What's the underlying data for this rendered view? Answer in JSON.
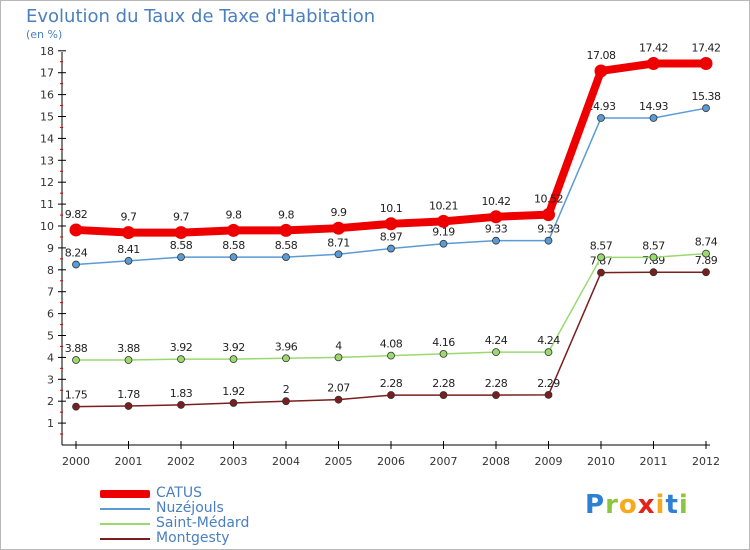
{
  "header": {
    "title": "Evolution du Taux de Taxe d'Habitation",
    "subtitle": "(en %)"
  },
  "logo": {
    "text": "Proxiti",
    "letters": [
      "P",
      "r",
      "o",
      "x",
      "i",
      "t",
      "i"
    ],
    "colors": [
      "#2e7fd6",
      "#8cc63f",
      "#f7a91b",
      "#e2231a",
      "#f7a91b",
      "#2e7fd6",
      "#8cc63f"
    ]
  },
  "chart_data": {
    "type": "line",
    "x": [
      "2000",
      "2001",
      "2002",
      "2003",
      "2004",
      "2005",
      "2006",
      "2007",
      "2008",
      "2009",
      "2010",
      "2011",
      "2012"
    ],
    "ylim": [
      0,
      18
    ],
    "yticks": [
      "1",
      "2",
      "3",
      "4",
      "5",
      "6",
      "7",
      "8",
      "9",
      "10",
      "11",
      "12",
      "13",
      "14",
      "15",
      "16",
      "17",
      "18"
    ],
    "grid": false,
    "legend_position": "bottom-left",
    "series": [
      {
        "name": "CATUS",
        "color": "#ee0000",
        "values": [
          9.82,
          9.7,
          9.7,
          9.8,
          9.8,
          9.9,
          10.1,
          10.21,
          10.42,
          10.52,
          17.08,
          17.42,
          17.42
        ],
        "labels": [
          "9.82",
          "9.7",
          "9.7",
          "9.8",
          "9.8",
          "9.9",
          "10.1",
          "10.21",
          "10.42",
          "10.52",
          "17.08",
          "17.42",
          "17.42"
        ]
      },
      {
        "name": "Nuzéjouls",
        "color": "#5b9bd5",
        "values": [
          8.24,
          8.41,
          8.58,
          8.58,
          8.58,
          8.71,
          8.97,
          9.19,
          9.33,
          9.33,
          14.93,
          14.93,
          15.38
        ],
        "labels": [
          "8.24",
          "8.41",
          "8.58",
          "8.58",
          "8.58",
          "8.71",
          "8.97",
          "9.19",
          "9.33",
          "9.33",
          "14.93",
          "14.93",
          "15.38"
        ]
      },
      {
        "name": "Saint-Médard",
        "color": "#9bd970",
        "values": [
          3.88,
          3.88,
          3.92,
          3.92,
          3.96,
          4,
          4.08,
          4.16,
          4.24,
          4.24,
          8.57,
          8.57,
          8.74
        ],
        "labels": [
          "3.88",
          "3.88",
          "3.92",
          "3.92",
          "3.96",
          "4",
          "4.08",
          "4.16",
          "4.24",
          "4.24",
          "8.57",
          "8.57",
          "8.74"
        ]
      },
      {
        "name": "Montgesty",
        "color": "#7a1e1e",
        "values": [
          1.75,
          1.78,
          1.83,
          1.92,
          2,
          2.07,
          2.28,
          2.28,
          2.28,
          2.29,
          7.87,
          7.89,
          7.89
        ],
        "labels": [
          "1.75",
          "1.78",
          "1.83",
          "1.92",
          "2",
          "2.07",
          "2.28",
          "2.28",
          "2.28",
          "2.29",
          "7.87",
          "7.89",
          "7.89"
        ]
      }
    ]
  }
}
